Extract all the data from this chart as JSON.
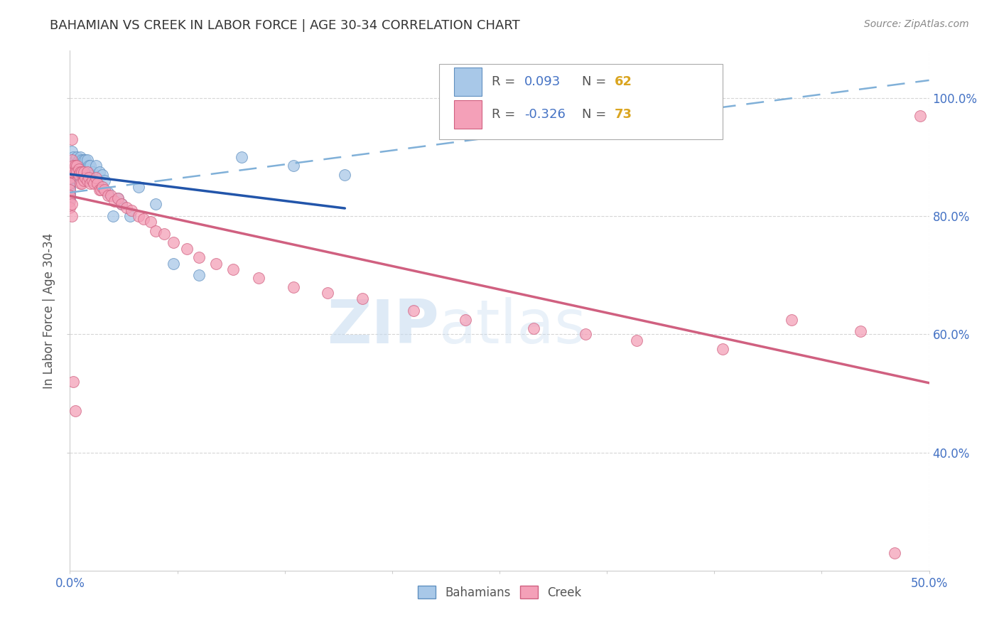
{
  "title": "BAHAMIAN VS CREEK IN LABOR FORCE | AGE 30-34 CORRELATION CHART",
  "source_text": "Source: ZipAtlas.com",
  "ylabel": "In Labor Force | Age 30-34",
  "xlim": [
    0.0,
    0.5
  ],
  "ylim": [
    0.2,
    1.08
  ],
  "xticklabels_show": {
    "0.0": "0.0%",
    "0.50": "50.0%"
  },
  "right_yticks": [
    0.4,
    0.6,
    0.8,
    1.0
  ],
  "right_yticklabels": [
    "40.0%",
    "60.0%",
    "80.0%",
    "100.0%"
  ],
  "bahamian_color": "#A8C8E8",
  "creek_color": "#F4A0B8",
  "bahamian_edge": "#6090C0",
  "creek_edge": "#D06080",
  "trend_blue_solid": "#2255AA",
  "trend_blue_dash": "#80B0D8",
  "trend_pink": "#D06080",
  "R_bahamian": 0.093,
  "N_bahamian": 62,
  "R_creek": -0.326,
  "N_creek": 73,
  "watermark_zip": "ZIP",
  "watermark_atlas": "atlas",
  "watermark_color": "#C8DCF0",
  "bahamian_x": [
    0.0,
    0.0,
    0.0,
    0.0,
    0.0,
    0.0,
    0.0,
    0.0,
    0.0,
    0.0,
    0.001,
    0.001,
    0.001,
    0.001,
    0.001,
    0.002,
    0.002,
    0.002,
    0.003,
    0.003,
    0.003,
    0.003,
    0.004,
    0.004,
    0.004,
    0.005,
    0.005,
    0.005,
    0.006,
    0.006,
    0.006,
    0.007,
    0.007,
    0.007,
    0.008,
    0.008,
    0.009,
    0.009,
    0.01,
    0.01,
    0.011,
    0.012,
    0.013,
    0.014,
    0.015,
    0.015,
    0.017,
    0.018,
    0.019,
    0.02,
    0.022,
    0.025,
    0.028,
    0.03,
    0.035,
    0.04,
    0.05,
    0.06,
    0.075,
    0.1,
    0.13,
    0.16
  ],
  "bahamian_y": [
    0.875,
    0.87,
    0.865,
    0.86,
    0.855,
    0.85,
    0.845,
    0.84,
    0.835,
    0.83,
    0.91,
    0.89,
    0.875,
    0.87,
    0.865,
    0.9,
    0.89,
    0.875,
    0.895,
    0.885,
    0.875,
    0.865,
    0.9,
    0.89,
    0.875,
    0.895,
    0.885,
    0.875,
    0.9,
    0.89,
    0.875,
    0.895,
    0.885,
    0.875,
    0.895,
    0.875,
    0.895,
    0.875,
    0.895,
    0.875,
    0.885,
    0.885,
    0.875,
    0.87,
    0.885,
    0.86,
    0.875,
    0.85,
    0.87,
    0.86,
    0.84,
    0.8,
    0.83,
    0.82,
    0.8,
    0.85,
    0.82,
    0.72,
    0.7,
    0.9,
    0.885,
    0.87
  ],
  "creek_x": [
    0.0,
    0.0,
    0.0,
    0.0,
    0.0,
    0.0,
    0.0,
    0.0,
    0.001,
    0.001,
    0.001,
    0.002,
    0.002,
    0.003,
    0.003,
    0.004,
    0.004,
    0.005,
    0.005,
    0.006,
    0.006,
    0.007,
    0.007,
    0.008,
    0.008,
    0.009,
    0.01,
    0.01,
    0.011,
    0.012,
    0.013,
    0.014,
    0.015,
    0.016,
    0.017,
    0.018,
    0.019,
    0.02,
    0.022,
    0.024,
    0.026,
    0.028,
    0.03,
    0.033,
    0.036,
    0.04,
    0.043,
    0.047,
    0.05,
    0.055,
    0.06,
    0.068,
    0.075,
    0.085,
    0.095,
    0.11,
    0.13,
    0.15,
    0.17,
    0.2,
    0.23,
    0.27,
    0.3,
    0.33,
    0.38,
    0.42,
    0.46,
    0.48,
    0.495,
    0.001,
    0.001,
    0.002,
    0.003
  ],
  "creek_y": [
    0.88,
    0.87,
    0.865,
    0.855,
    0.845,
    0.835,
    0.825,
    0.815,
    0.93,
    0.895,
    0.875,
    0.885,
    0.875,
    0.885,
    0.875,
    0.885,
    0.875,
    0.88,
    0.87,
    0.875,
    0.855,
    0.875,
    0.855,
    0.875,
    0.86,
    0.865,
    0.875,
    0.86,
    0.865,
    0.855,
    0.86,
    0.855,
    0.865,
    0.855,
    0.845,
    0.845,
    0.85,
    0.845,
    0.835,
    0.835,
    0.825,
    0.83,
    0.82,
    0.815,
    0.81,
    0.8,
    0.795,
    0.79,
    0.775,
    0.77,
    0.755,
    0.745,
    0.73,
    0.72,
    0.71,
    0.695,
    0.68,
    0.67,
    0.66,
    0.64,
    0.625,
    0.61,
    0.6,
    0.59,
    0.575,
    0.625,
    0.605,
    0.23,
    0.97,
    0.82,
    0.8,
    0.52,
    0.47
  ]
}
